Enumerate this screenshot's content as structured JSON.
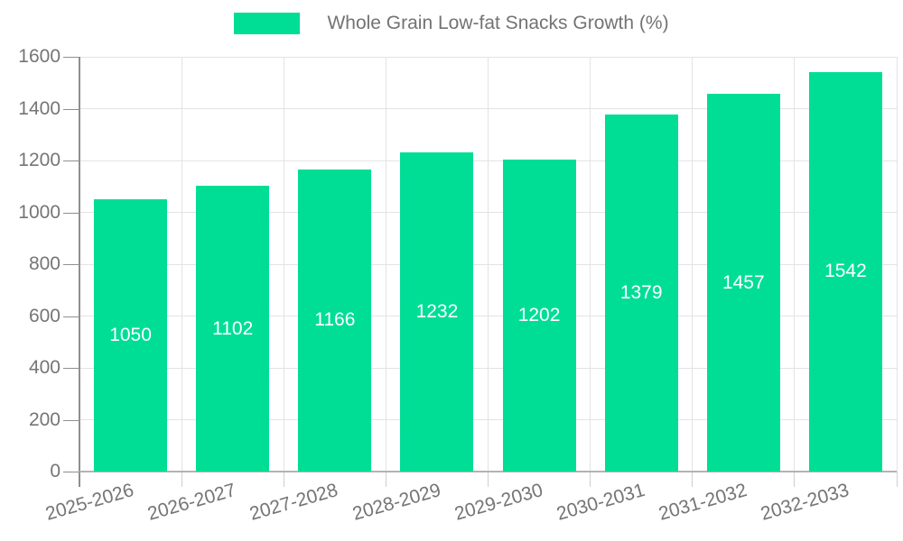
{
  "chart_data": {
    "type": "bar",
    "title": "",
    "legend": "Whole Grain Low-fat Snacks Growth (%)",
    "legend_position": "top",
    "categories": [
      "2025-2026",
      "2026-2027",
      "2027-2028",
      "2028-2029",
      "2029-2030",
      "2030-2031",
      "2031-2032",
      "2032-2033"
    ],
    "values": [
      1050,
      1102,
      1166,
      1232,
      1202,
      1379,
      1457,
      1542
    ],
    "value_labels": [
      "1050",
      "1102",
      "1166",
      "1232",
      "1202",
      "1379",
      "1457",
      "1542"
    ],
    "xlabel": "",
    "ylabel": "",
    "ylim": [
      0,
      1600
    ],
    "y_ticks": [
      0,
      200,
      400,
      600,
      800,
      1000,
      1200,
      1400,
      1600
    ],
    "grid": true,
    "colors": {
      "bar": "#00DE96",
      "value_label": "#ffffff",
      "axis_text": "#757575",
      "legend_text": "#737373",
      "grid_line": "#e3e3e3",
      "y_axis_line": "#8f8f8f",
      "x_axis_line": "#b3b3b3",
      "background": "#ffffff"
    }
  }
}
